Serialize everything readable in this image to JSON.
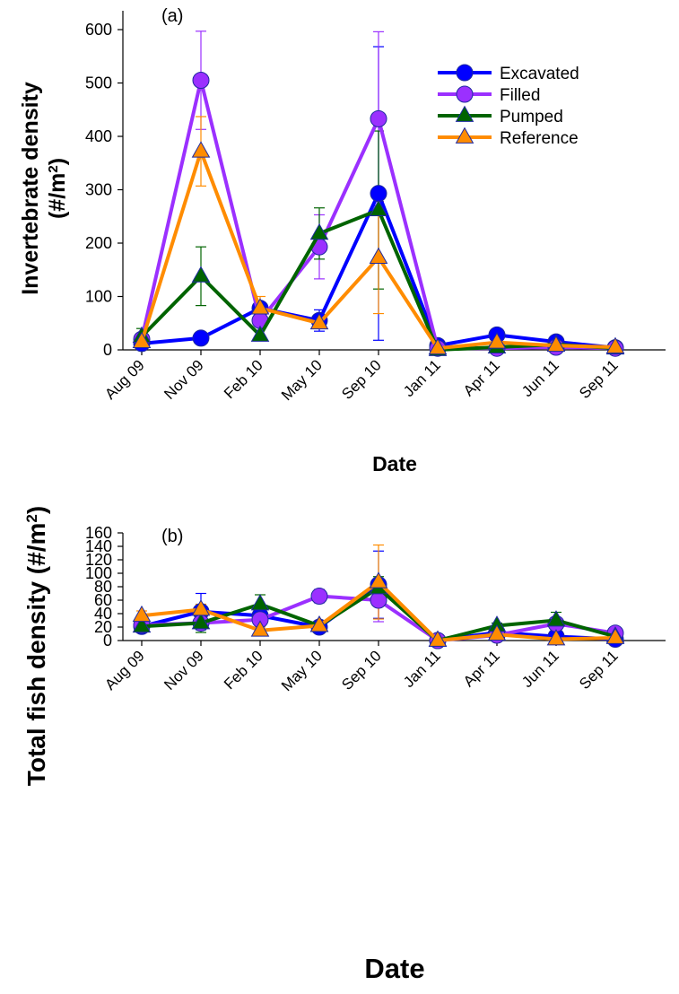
{
  "chart_data": [
    {
      "type": "line",
      "panel_label": "(a)",
      "title": "",
      "xlabel": "Date",
      "ylabel_main": "Invertebrate density",
      "ylabel_unit": "(#/m",
      "ylabel_sup": "2",
      "ylabel_close": ")",
      "categories": [
        "Aug 09",
        "Nov 09",
        "Feb 10",
        "May 10",
        "Sep 10",
        "Jan 11",
        "Apr 11",
        "Jun 11",
        "Sep 11"
      ],
      "ylim": [
        0,
        600
      ],
      "yticks": [
        0,
        100,
        200,
        300,
        400,
        500,
        600
      ],
      "grid": false,
      "legend_position": "top-right",
      "series": [
        {
          "name": "Excavated",
          "color": "#0000ff",
          "marker": "circle",
          "values": [
            12,
            22,
            78,
            55,
            293,
            8,
            28,
            15,
            4
          ],
          "error": [
            null,
            null,
            null,
            20,
            275,
            null,
            null,
            null,
            null
          ]
        },
        {
          "name": "Filled",
          "color": "#9b30ff",
          "marker": "circle",
          "values": [
            20,
            505,
            55,
            193,
            433,
            3,
            3,
            5,
            3
          ],
          "error": [
            null,
            92,
            null,
            60,
            163,
            null,
            null,
            null,
            null
          ]
        },
        {
          "name": "Pumped",
          "color": "#006400",
          "marker": "triangle",
          "values": [
            25,
            138,
            27,
            218,
            262,
            0,
            5,
            10,
            3
          ],
          "error": [
            15,
            55,
            null,
            48,
            148,
            null,
            null,
            null,
            null
          ]
        },
        {
          "name": "Reference",
          "color": "#ff8c00",
          "marker": "triangle",
          "values": [
            15,
            372,
            78,
            50,
            173,
            3,
            14,
            8,
            5
          ],
          "error": [
            null,
            65,
            22,
            null,
            105,
            null,
            null,
            null,
            5
          ]
        }
      ]
    },
    {
      "type": "line",
      "panel_label": "(b)",
      "title": "",
      "xlabel": "Date",
      "ylabel_main": "Total fish density (#/m",
      "ylabel_sup": "2",
      "ylabel_close": ")",
      "categories": [
        "Aug 09",
        "Nov 09",
        "Feb 10",
        "May 10",
        "Sep 10",
        "Jan 11",
        "Apr 11",
        "Jun 11",
        "Sep 11"
      ],
      "ylim": [
        0,
        160
      ],
      "yticks": [
        0,
        20,
        40,
        60,
        80,
        100,
        120,
        140,
        160
      ],
      "grid": false,
      "legend_position": "none",
      "series": [
        {
          "name": "Excavated",
          "color": "#0000ff",
          "marker": "circle",
          "values": [
            21,
            43,
            37,
            20,
            83,
            0,
            12,
            6,
            2
          ],
          "error": [
            8,
            27,
            8,
            7,
            50,
            null,
            3,
            null,
            null
          ]
        },
        {
          "name": "Filled",
          "color": "#9b30ff",
          "marker": "circle",
          "values": [
            23,
            26,
            31,
            66,
            60,
            0,
            8,
            25,
            11
          ],
          "error": [
            5,
            8,
            10,
            10,
            32,
            null,
            null,
            8,
            null
          ]
        },
        {
          "name": "Pumped",
          "color": "#006400",
          "marker": "triangle",
          "values": [
            21,
            26,
            54,
            22,
            78,
            0,
            22,
            30,
            6
          ],
          "error": [
            6,
            14,
            14,
            6,
            17,
            null,
            4,
            12,
            null
          ]
        },
        {
          "name": "Reference",
          "color": "#ff8c00",
          "marker": "triangle",
          "values": [
            37,
            46,
            15,
            22,
            87,
            0,
            9,
            2,
            4
          ],
          "error": [
            7,
            8,
            5,
            6,
            55,
            null,
            3,
            null,
            null
          ]
        }
      ]
    }
  ]
}
